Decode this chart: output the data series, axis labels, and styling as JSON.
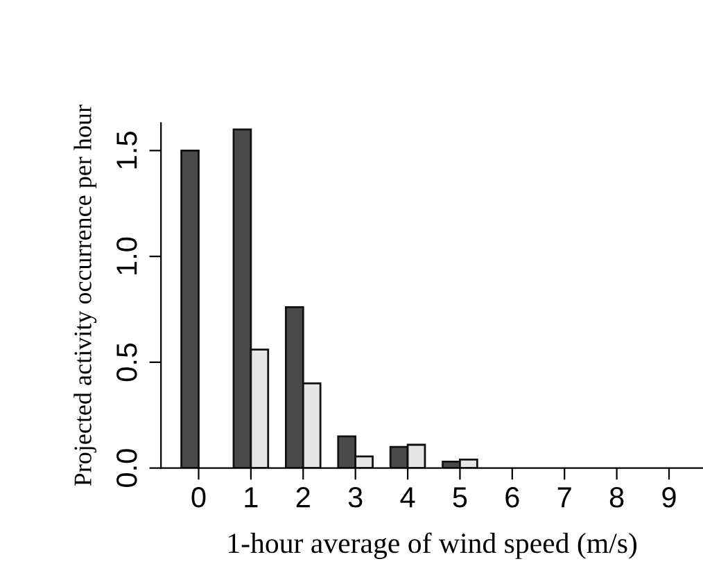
{
  "chart_data": {
    "type": "bar",
    "xlabel": "1-hour average of wind speed (m/s)",
    "ylabel": "Projected activity occurrence per hour",
    "categories": [
      "0",
      "1",
      "2",
      "3",
      "4",
      "5",
      "6",
      "7",
      "8",
      "9"
    ],
    "series": [
      {
        "color": "#4a4a4a",
        "values": [
          1.5,
          1.6,
          0.76,
          0.15,
          0.1,
          0.03,
          0,
          0,
          0,
          0
        ]
      },
      {
        "color": "#e6e6e6",
        "values": [
          0,
          0.56,
          0.4,
          0.055,
          0.11,
          0.04,
          0,
          0,
          0,
          0
        ]
      }
    ],
    "ylim": [
      0,
      1.63
    ],
    "yticks": [
      {
        "value": 0,
        "label": "0.0"
      },
      {
        "value": 0.5,
        "label": "0.5"
      },
      {
        "value": 1.0,
        "label": "1.0"
      },
      {
        "value": 1.5,
        "label": "1.5"
      }
    ],
    "grid": false,
    "legend": false
  }
}
